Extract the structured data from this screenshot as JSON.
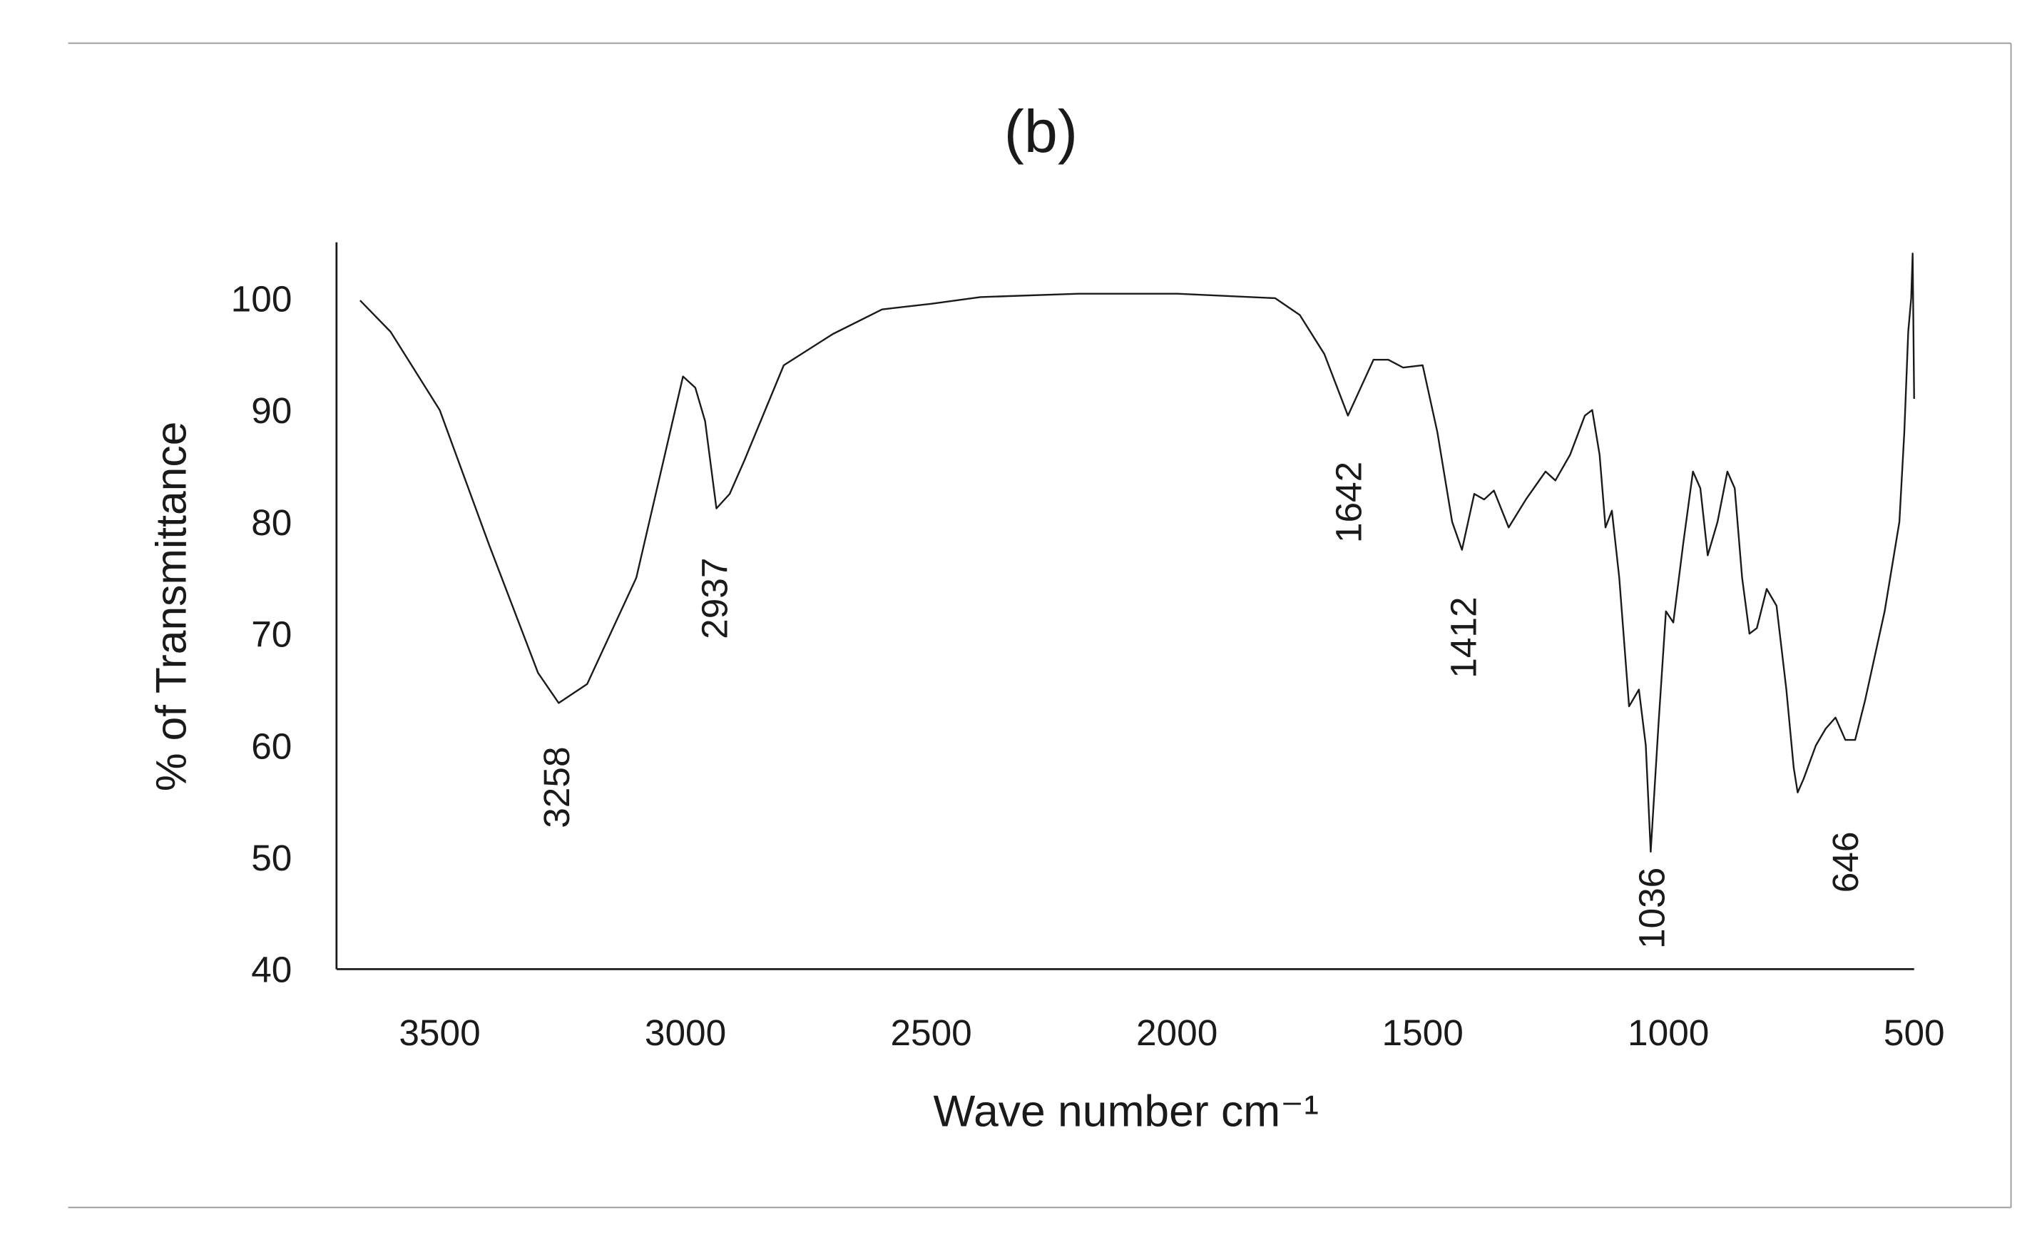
{
  "chart_data": {
    "type": "line",
    "title": "(b)",
    "xlabel": "Wave number cm⁻¹",
    "ylabel": "% of Transmittance",
    "xlim": [
      3710,
      500
    ],
    "ylim": [
      40,
      105
    ],
    "xticks": [
      3500,
      3000,
      2500,
      2000,
      1500,
      1000,
      500
    ],
    "yticks": [
      40,
      50,
      60,
      70,
      80,
      90,
      100
    ],
    "grid": false,
    "color": "#1a1a1a",
    "x": [
      3662,
      3600,
      3500,
      3400,
      3300,
      3258,
      3200,
      3100,
      3005,
      2980,
      2960,
      2937,
      2910,
      2880,
      2800,
      2700,
      2600,
      2500,
      2400,
      2200,
      2000,
      1800,
      1750,
      1700,
      1652,
      1600,
      1570,
      1540,
      1500,
      1470,
      1440,
      1420,
      1395,
      1375,
      1355,
      1325,
      1290,
      1250,
      1230,
      1200,
      1170,
      1155,
      1140,
      1128,
      1115,
      1100,
      1080,
      1060,
      1046,
      1036,
      1020,
      1005,
      990,
      970,
      950,
      935,
      920,
      900,
      880,
      865,
      850,
      835,
      820,
      800,
      780,
      760,
      745,
      737,
      725,
      700,
      680,
      660,
      640,
      620,
      600,
      580,
      560,
      545,
      530,
      520,
      512,
      506,
      503,
      500
    ],
    "values": [
      99.8,
      97,
      90,
      78,
      66.5,
      63.8,
      65.5,
      75,
      93,
      92,
      89,
      81.2,
      82.5,
      85.5,
      94,
      96.8,
      99,
      99.5,
      100.1,
      100.4,
      100.4,
      100,
      98.5,
      95,
      89.5,
      94.5,
      94.5,
      93.8,
      94,
      88,
      80,
      77.5,
      82.5,
      82,
      82.8,
      79.5,
      82,
      84.5,
      83.7,
      86,
      89.5,
      90,
      86,
      79.5,
      81,
      75,
      63.5,
      65,
      60,
      50.5,
      62,
      72,
      71,
      78,
      84.5,
      83,
      77,
      80,
      84.5,
      83,
      75,
      70,
      70.5,
      74,
      72.5,
      65,
      58,
      55.8,
      57,
      60,
      61.5,
      62.5,
      60.5,
      60.5,
      64,
      68,
      72,
      76,
      80,
      88,
      97,
      100,
      104,
      91
    ],
    "annotations": [
      {
        "text": "3258",
        "x": 3263,
        "y": 59.9
      },
      {
        "text": "2937",
        "x": 2942,
        "y": 76.8
      },
      {
        "text": "1642",
        "x": 1652,
        "y": 85.4
      },
      {
        "text": "1412",
        "x": 1418,
        "y": 73.3
      },
      {
        "text": "1036",
        "x": 1035,
        "y": 49.1
      },
      {
        "text": "646",
        "x": 641,
        "y": 52.3
      }
    ]
  }
}
